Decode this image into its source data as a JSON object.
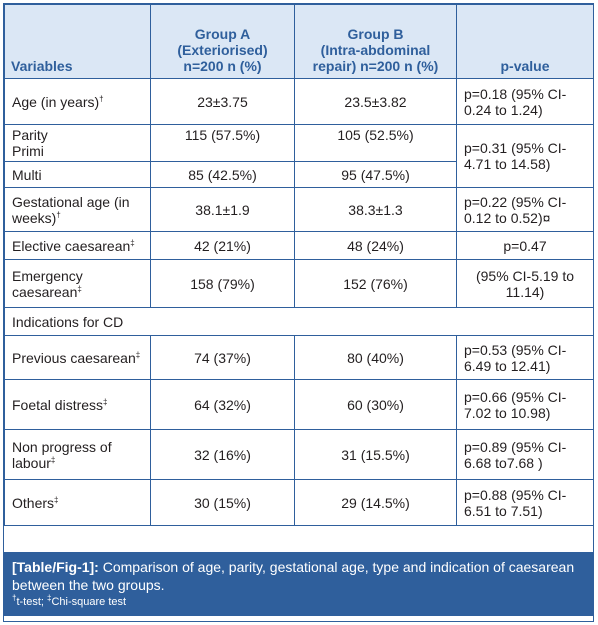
{
  "table": {
    "headers": [
      "Variables",
      "Group A\n(Exteriorised)\nn=200 n (%)",
      "Group B\n(Intra-abdominal\nrepair) n=200 n (%)",
      "p-value"
    ],
    "rows": {
      "age": {
        "label": "Age (in years)",
        "sup": "†",
        "a": "23±3.75",
        "b": "23.5±3.82",
        "p": "p=0.18 (95% CI-\n0.24 to 1.24)"
      },
      "parity": {
        "label": "Parity\nPrimi",
        "a": "115 (57.5%)",
        "b": "105 (52.5%)",
        "p": "p=0.31 (95% CI-\n4.71 to 14.58)"
      },
      "multi": {
        "label": "Multi",
        "a": "85 (42.5%)",
        "b": "95 (47.5%)"
      },
      "gestational": {
        "label": "Gestational age (in\nweeks)",
        "sup": "†",
        "a": "38.1±1.9",
        "b": "38.3±1.3",
        "p": "p=0.22 (95% CI-\n0.12 to 0.52)¤"
      },
      "elective": {
        "label": "Elective caesarean",
        "sup": "‡",
        "a": "42 (21%)",
        "b": "48 (24%)",
        "p": "p=0.47"
      },
      "emergency": {
        "label": "Emergency\ncaesarean",
        "sup": "‡",
        "a": "158 (79%)",
        "b": "152 (76%)",
        "p": "(95% CI-5.19 to\n11.14)"
      },
      "indications": {
        "label": "Indications for CD"
      },
      "previous": {
        "label": "Previous caesarean",
        "sup": "‡",
        "a": "74 (37%)",
        "b": "80 (40%)",
        "p": "p=0.53 (95% CI-\n6.49 to 12.41)"
      },
      "foetal": {
        "label": "Foetal distress",
        "sup": "‡",
        "a": "64 (32%)",
        "b": "60 (30%)",
        "p": "p=0.66 (95% CI-\n7.02 to 10.98)"
      },
      "nonprogress": {
        "label": "Non progress of\nlabour",
        "sup": "‡",
        "a": "32 (16%)",
        "b": "31 (15.5%)",
        "p": "p=0.89 (95% CI-\n6.68 to7.68 )"
      },
      "others": {
        "label": "Others",
        "sup": "‡",
        "a": "30 (15%)",
        "b": "29 (14.5%)",
        "p": "p=0.88 (95% CI-\n6.51 to 7.51)"
      }
    }
  },
  "caption": {
    "lead": "[Table/Fig-1]:",
    "text": " Comparison of age, parity, gestational age, type and indication of caesarean between the two groups.",
    "sup_t": "†",
    "t_test": "t-test; ",
    "sup_chi": "‡",
    "chi": "Chi-square test"
  }
}
